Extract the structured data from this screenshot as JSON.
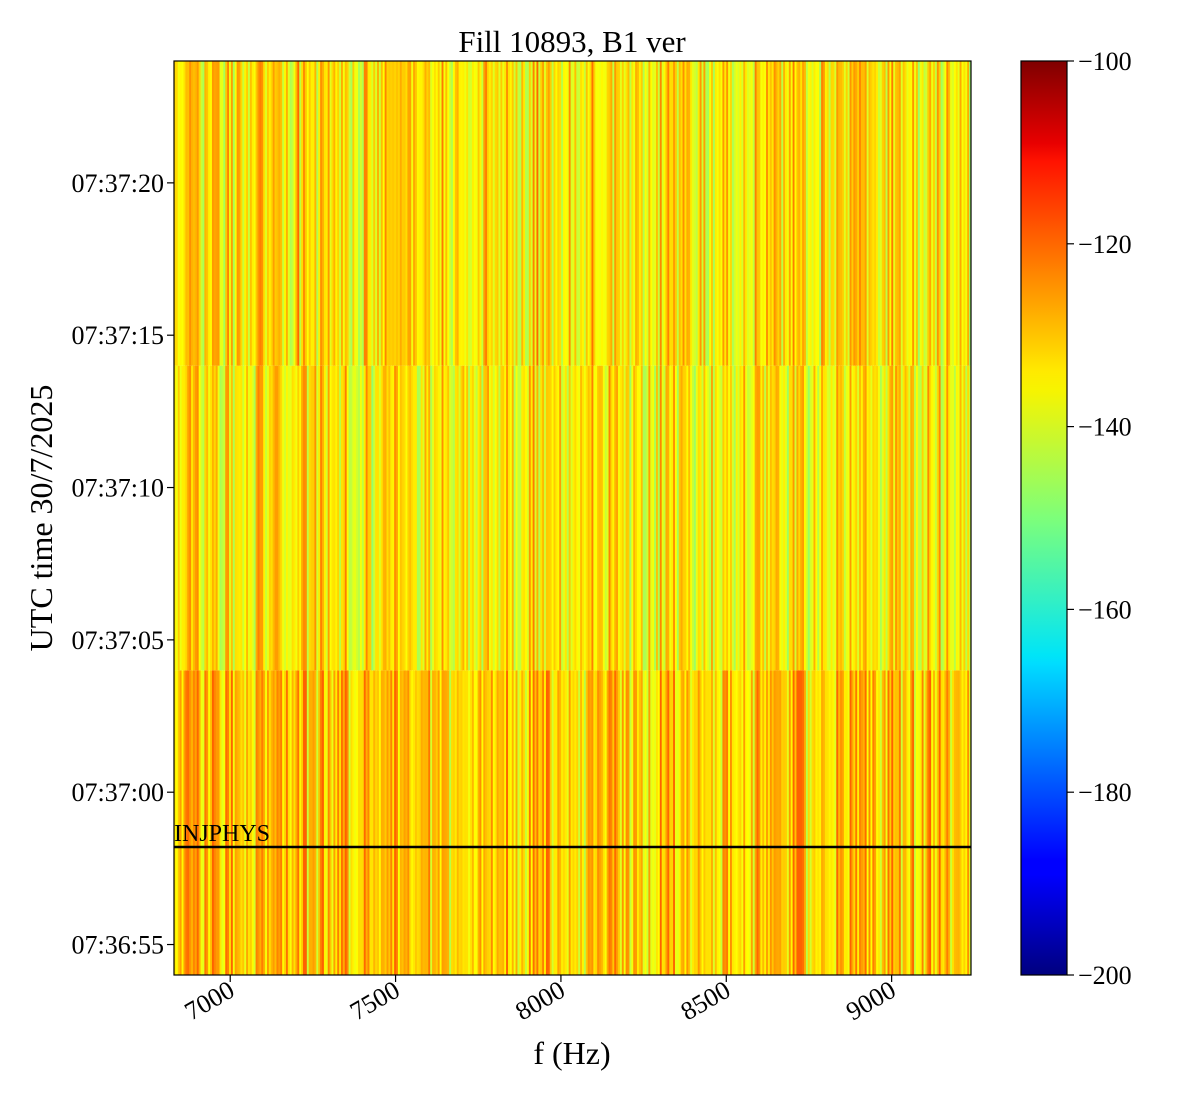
{
  "chart_data": {
    "type": "heatmap",
    "title": "Fill 10893, B1 ver",
    "xlabel": "f (Hz)",
    "ylabel": "UTC time 30/7/2025",
    "xlim": [
      6830,
      9240
    ],
    "x_ticks": [
      {
        "value": 7000,
        "label": "7000"
      },
      {
        "value": 7500,
        "label": "7500"
      },
      {
        "value": 8000,
        "label": "8000"
      },
      {
        "value": 8500,
        "label": "8500"
      },
      {
        "value": 9000,
        "label": "9000"
      }
    ],
    "ylim": [
      "07:36:54",
      "07:37:24"
    ],
    "y_ticks": [
      {
        "value": "07:36:55",
        "label": "07:36:55"
      },
      {
        "value": "07:37:00",
        "label": "07:37:00"
      },
      {
        "value": "07:37:05",
        "label": "07:37:05"
      },
      {
        "value": "07:37:10",
        "label": "07:37:10"
      },
      {
        "value": "07:37:15",
        "label": "07:37:15"
      },
      {
        "value": "07:37:20",
        "label": "07:37:20"
      }
    ],
    "time_segments": [
      {
        "start": "07:36:54",
        "end": "07:37:04",
        "mean_level": -132
      },
      {
        "start": "07:37:04",
        "end": "07:37:14",
        "mean_level": -136
      },
      {
        "start": "07:37:14",
        "end": "07:37:24",
        "mean_level": -135
      }
    ],
    "value_range_observed": [
      -155,
      -122
    ],
    "colormap": "jet",
    "colorbar": {
      "range": [
        -200,
        -100
      ],
      "ticks": [
        {
          "value": -100,
          "label": "−100"
        },
        {
          "value": -120,
          "label": "−120"
        },
        {
          "value": -140,
          "label": "−140"
        },
        {
          "value": -160,
          "label": "−160"
        },
        {
          "value": -180,
          "label": "−180"
        },
        {
          "value": -200,
          "label": "−200"
        }
      ]
    },
    "annotations": [
      {
        "label": "INJPHYS",
        "time": "07:36:58.2",
        "color": "#000000"
      }
    ]
  }
}
